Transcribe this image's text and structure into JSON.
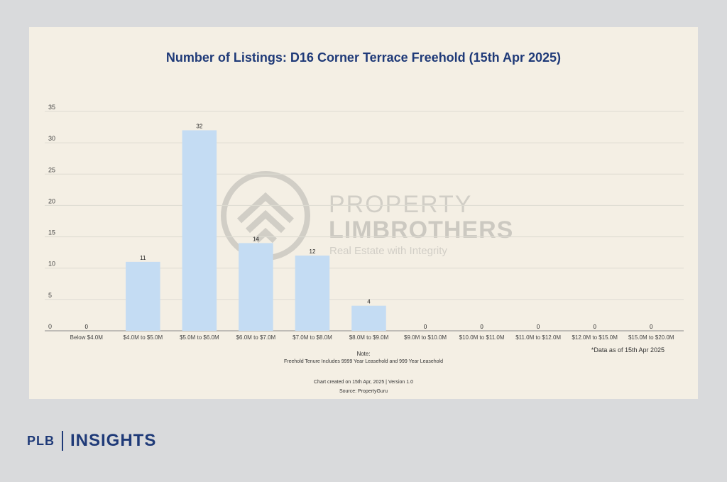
{
  "chart_data": {
    "type": "bar",
    "title": "Number of Listings: D16 Corner Terrace Freehold (15th Apr 2025)",
    "xlabel": "",
    "ylabel": "",
    "ylim": [
      0,
      35
    ],
    "yticks": [
      0,
      5,
      10,
      15,
      20,
      25,
      30,
      35
    ],
    "categories": [
      "Below $4.0M",
      "$4.0M to $5.0M",
      "$5.0M to $6.0M",
      "$6.0M to $7.0M",
      "$7.0M to $8.0M",
      "$8.0M to $9.0M",
      "$9.0M to $10.0M",
      "$10.0M to $11.0M",
      "$11.0M to $12.0M",
      "$12.0M to $15.0M",
      "$15.0M to $20.0M"
    ],
    "values": [
      0,
      11,
      32,
      14,
      12,
      4,
      0,
      0,
      0,
      0,
      0
    ],
    "grid": true,
    "legend": "none"
  },
  "annotations": {
    "data_note": "*Data as of 15th Apr 2025",
    "note_title": "Note:",
    "note_text": "Freehold Tenure Includes 9999 Year Leasehold and 999 Year Leasehold",
    "created": "Chart created on 15th Apr, 2025 | Version 1.0",
    "source": "Source: PropertyGuru"
  },
  "watermark": {
    "brand_line1": "PROPERTY",
    "brand_line2": "LIMBROTHERS",
    "tagline": "Real Estate with Integrity",
    "logo_icon": "house-roof-icon"
  },
  "footer": {
    "left": "PLB",
    "right": "INSIGHTS"
  },
  "colors": {
    "bar": "#c4dcf3",
    "title": "#1f3a78",
    "background": "#f4efe4",
    "page": "#d9dadc"
  }
}
